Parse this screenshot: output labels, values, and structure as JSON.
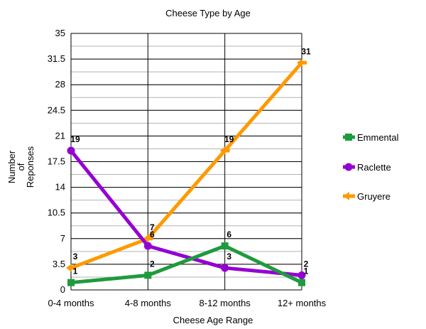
{
  "chart_data": {
    "type": "line",
    "title": "Cheese Type by Age",
    "xlabel": "Cheese Age Range",
    "ylabel": [
      "Number",
      "of",
      "Reponses"
    ],
    "categories": [
      "0-4 months",
      "4-8 months",
      "8-12 months",
      "12+ months"
    ],
    "ylim": [
      0,
      35
    ],
    "yticks": [
      "0",
      "3.5",
      "7",
      "10.5",
      "14",
      "17.5",
      "21",
      "24.5",
      "28",
      "31.5",
      "35"
    ],
    "grid": true,
    "legend_position": "right",
    "series": [
      {
        "name": "Emmental",
        "values": [
          1,
          2,
          6,
          1
        ],
        "color": "#1e9b3c",
        "marker": "square"
      },
      {
        "name": "Raclette",
        "values": [
          19,
          6,
          3,
          2
        ],
        "color": "#9400d3",
        "marker": "circle"
      },
      {
        "name": "Gruyere",
        "values": [
          3,
          7,
          19,
          31
        ],
        "color": "#ff9900",
        "marker": "arrow"
      }
    ]
  }
}
